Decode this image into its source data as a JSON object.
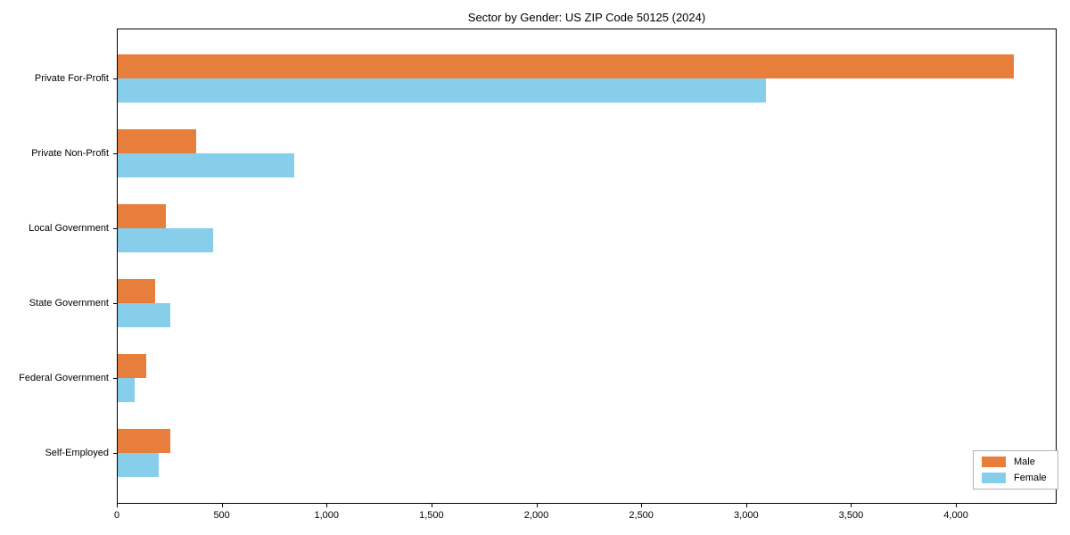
{
  "chart_data": {
    "type": "bar",
    "orientation": "horizontal",
    "title": "Sector by Gender: US ZIP Code 50125 (2024)",
    "categories": [
      "Private For-Profit",
      "Private Non-Profit",
      "Local Government",
      "State Government",
      "Federal Government",
      "Self-Employed"
    ],
    "series": [
      {
        "name": "Male",
        "color": "#E87E3C",
        "values": [
          4270,
          375,
          230,
          180,
          135,
          250
        ]
      },
      {
        "name": "Female",
        "color": "#87CEEB",
        "values": [
          3090,
          840,
          455,
          250,
          80,
          195
        ]
      }
    ],
    "xlim": [
      0,
      4480
    ],
    "xticks": [
      0,
      500,
      1000,
      1500,
      2000,
      2500,
      3000,
      3500,
      4000
    ],
    "xtick_labels": [
      "0",
      "500",
      "1,000",
      "1,500",
      "2,000",
      "2,500",
      "3,000",
      "3,500",
      "4,000"
    ],
    "xlabel": "",
    "ylabel": "",
    "grid": false,
    "legend": {
      "position": "lower right",
      "entries": [
        "Male",
        "Female"
      ]
    }
  },
  "colors": {
    "male": "#E87E3C",
    "female": "#87CEEB",
    "axis": "#000000",
    "legend_border": "#b3b3b3",
    "background": "#ffffff"
  }
}
